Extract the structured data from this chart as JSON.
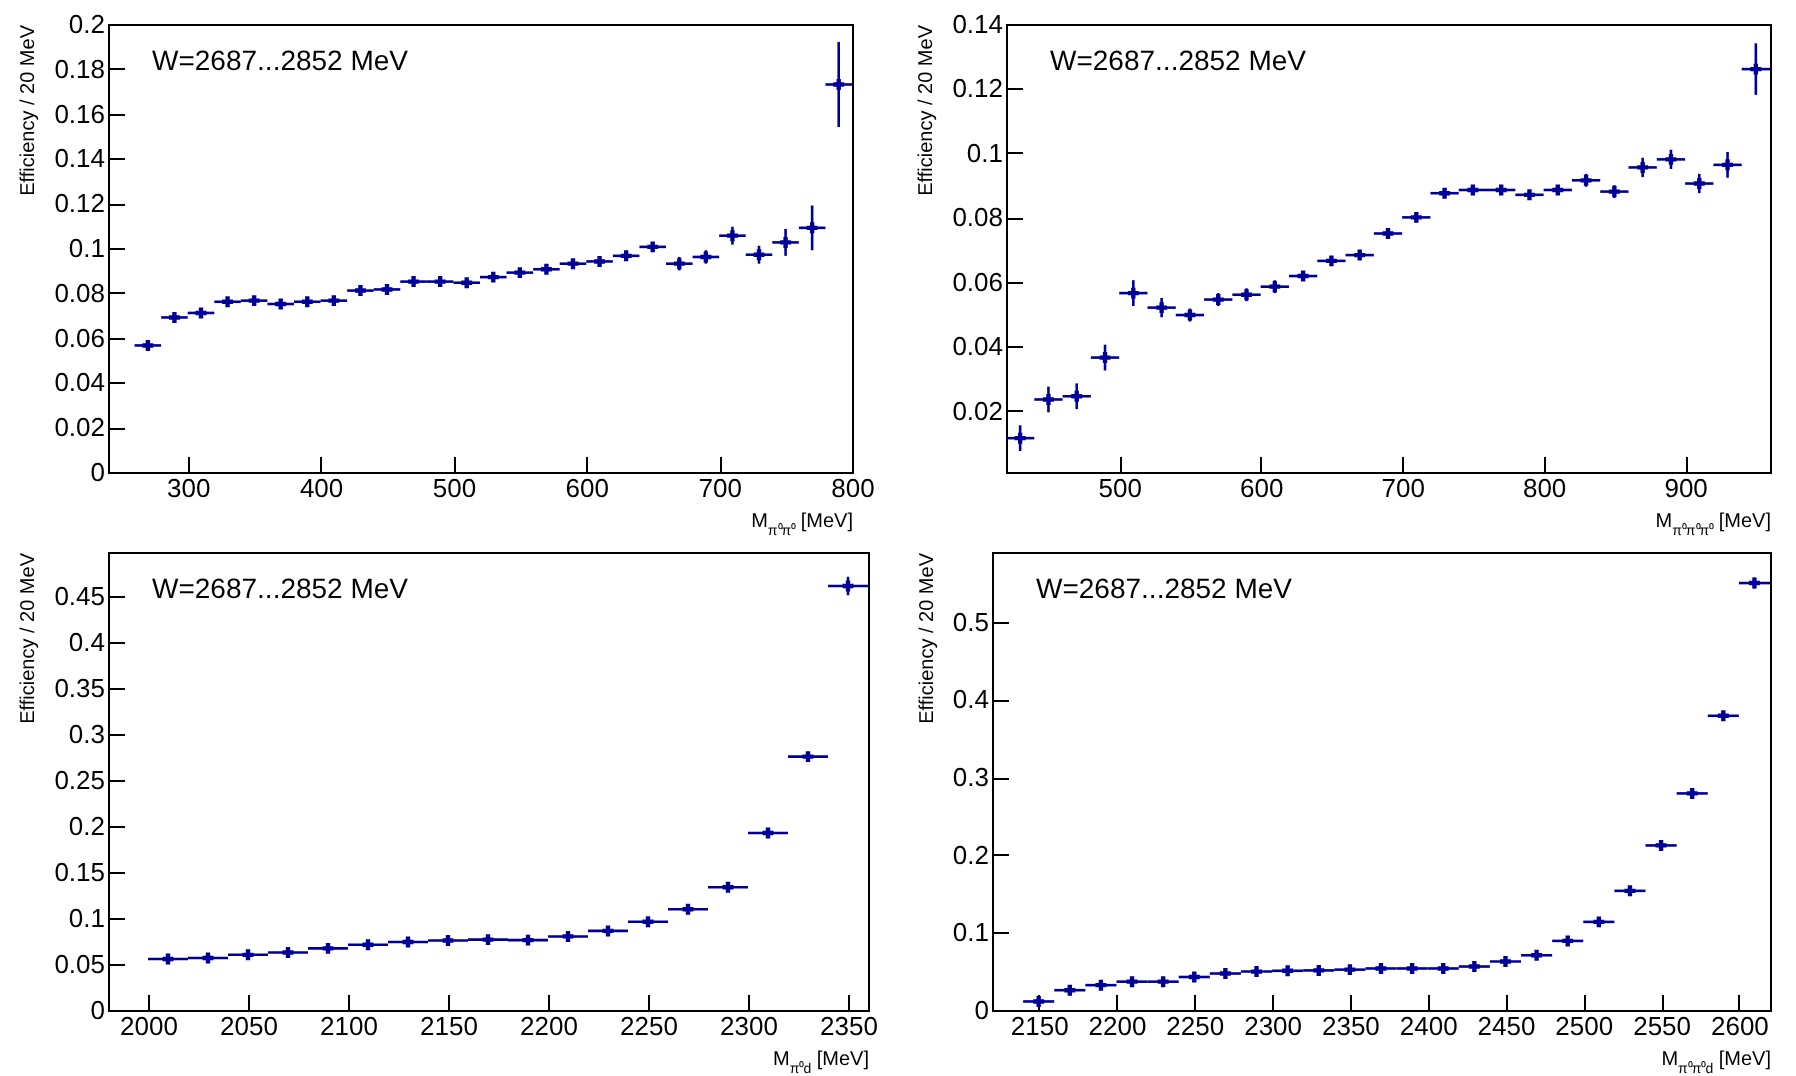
{
  "chart_data": [
    {
      "type": "scatter",
      "xlabel": "M$_{π⁰π⁰}$ [MeV]",
      "ylabel": "Efficiency / 20 MeV",
      "annotations": [
        "W=2687...2852 MeV"
      ],
      "color": "#000099",
      "marker": "cross",
      "grid": false,
      "xlim": [
        240,
        800
      ],
      "xticks": [
        300,
        400,
        500,
        600,
        700,
        800
      ],
      "ylim": [
        0,
        0.2
      ],
      "yticks": [
        0,
        0.02,
        0.04,
        0.06,
        0.08,
        0.1,
        0.12,
        0.14,
        0.16,
        0.18,
        0.2
      ],
      "x": [
        270,
        290,
        310,
        330,
        350,
        370,
        390,
        410,
        430,
        450,
        470,
        490,
        510,
        530,
        550,
        570,
        590,
        610,
        630,
        650,
        670,
        690,
        710,
        730,
        750,
        770,
        790
      ],
      "values": [
        0.0565,
        0.069,
        0.071,
        0.076,
        0.0765,
        0.075,
        0.076,
        0.0765,
        0.081,
        0.0815,
        0.085,
        0.085,
        0.0845,
        0.087,
        0.089,
        0.0905,
        0.093,
        0.094,
        0.0965,
        0.1005,
        0.093,
        0.096,
        0.1055,
        0.097,
        0.1025,
        0.109,
        0.173
      ],
      "errors": [
        0.001,
        0.001,
        0.001,
        0.001,
        0.001,
        0.001,
        0.001,
        0.001,
        0.001,
        0.001,
        0.001,
        0.001,
        0.001,
        0.001,
        0.0015,
        0.0015,
        0.0015,
        0.0015,
        0.002,
        0.002,
        0.003,
        0.003,
        0.004,
        0.004,
        0.006,
        0.01,
        0.019
      ],
      "xerrors": [
        10,
        10,
        10,
        10,
        10,
        10,
        10,
        10,
        10,
        10,
        10,
        10,
        10,
        10,
        10,
        10,
        10,
        10,
        10,
        10,
        10,
        10,
        10,
        10,
        10,
        10,
        10
      ]
    },
    {
      "type": "scatter",
      "xlabel": "M$_{π⁰π⁰π⁰}$ [MeV]",
      "ylabel": "Efficiency / 20 MeV",
      "annotations": [
        "W=2687...2852 MeV"
      ],
      "color": "#000099",
      "marker": "cross",
      "grid": false,
      "xlim": [
        420,
        960
      ],
      "xticks": [
        500,
        600,
        700,
        800,
        900
      ],
      "ylim": [
        0.001,
        0.14
      ],
      "yticks": [
        0.02,
        0.04,
        0.06,
        0.08,
        0.1,
        0.12,
        0.14
      ],
      "x": [
        430,
        450,
        470,
        490,
        510,
        530,
        550,
        570,
        590,
        610,
        630,
        650,
        670,
        690,
        710,
        730,
        750,
        770,
        790,
        810,
        830,
        850,
        870,
        890,
        910,
        930,
        950
      ],
      "values": [
        0.0115,
        0.0235,
        0.0245,
        0.0365,
        0.0565,
        0.052,
        0.0497,
        0.0545,
        0.056,
        0.0585,
        0.0618,
        0.0665,
        0.0683,
        0.075,
        0.08,
        0.0875,
        0.0885,
        0.0885,
        0.087,
        0.0885,
        0.0915,
        0.088,
        0.0955,
        0.098,
        0.0905,
        0.0963,
        0.126
      ],
      "errors": [
        0.004,
        0.004,
        0.004,
        0.004,
        0.004,
        0.003,
        0.002,
        0.002,
        0.002,
        0.002,
        0.0015,
        0.0015,
        0.0015,
        0.0015,
        0.0015,
        0.0015,
        0.0015,
        0.0015,
        0.0015,
        0.0015,
        0.002,
        0.002,
        0.003,
        0.003,
        0.003,
        0.004,
        0.008
      ],
      "xerrors": [
        10,
        10,
        10,
        10,
        10,
        10,
        10,
        10,
        10,
        10,
        10,
        10,
        10,
        10,
        10,
        10,
        10,
        10,
        10,
        10,
        10,
        10,
        10,
        10,
        10,
        10,
        10
      ]
    },
    {
      "type": "scatter",
      "xlabel": "M$_{π⁰d}$ [MeV]",
      "ylabel": "Efficiency / 20 MeV",
      "annotations": [
        "W=2687...2852 MeV"
      ],
      "color": "#000099",
      "marker": "cross",
      "grid": false,
      "xlim": [
        1980,
        2360
      ],
      "xticks": [
        2000,
        2050,
        2100,
        2150,
        2200,
        2250,
        2300,
        2350
      ],
      "ylim": [
        0,
        0.498
      ],
      "yticks": [
        0,
        0.05,
        0.1,
        0.15,
        0.2,
        0.25,
        0.3,
        0.35,
        0.4,
        0.45
      ],
      "x": [
        2010,
        2030,
        2050,
        2070,
        2090,
        2110,
        2130,
        2150,
        2170,
        2190,
        2210,
        2230,
        2250,
        2270,
        2290,
        2310,
        2330,
        2350
      ],
      "values": [
        0.0555,
        0.0565,
        0.06,
        0.0625,
        0.067,
        0.071,
        0.074,
        0.0755,
        0.0765,
        0.076,
        0.08,
        0.086,
        0.096,
        0.1095,
        0.1335,
        0.1925,
        0.2755,
        0.461
      ],
      "errors": [
        0.001,
        0.001,
        0.001,
        0.001,
        0.001,
        0.001,
        0.001,
        0.001,
        0.001,
        0.001,
        0.001,
        0.001,
        0.001,
        0.0015,
        0.002,
        0.003,
        0.004,
        0.01
      ],
      "xerrors": [
        10,
        10,
        10,
        10,
        10,
        10,
        10,
        10,
        10,
        10,
        10,
        10,
        10,
        10,
        10,
        10,
        10,
        10
      ]
    },
    {
      "type": "scatter",
      "xlabel": "M$_{π⁰π⁰d}$ [MeV]",
      "ylabel": "Efficiency / 20 MeV",
      "annotations": [
        "W=2687...2852 MeV"
      ],
      "color": "#000099",
      "marker": "cross",
      "grid": false,
      "xlim": [
        2120,
        2620
      ],
      "xticks": [
        2150,
        2200,
        2250,
        2300,
        2350,
        2400,
        2450,
        2500,
        2550,
        2600
      ],
      "ylim": [
        0,
        0.59
      ],
      "yticks": [
        0,
        0.1,
        0.2,
        0.3,
        0.4,
        0.5
      ],
      "x": [
        2150,
        2170,
        2190,
        2210,
        2230,
        2250,
        2270,
        2290,
        2310,
        2330,
        2350,
        2370,
        2390,
        2410,
        2430,
        2450,
        2470,
        2490,
        2510,
        2530,
        2550,
        2570,
        2590,
        2610
      ],
      "values": [
        0.011,
        0.0255,
        0.032,
        0.0365,
        0.0365,
        0.0425,
        0.047,
        0.0495,
        0.0505,
        0.051,
        0.052,
        0.0535,
        0.0535,
        0.0535,
        0.056,
        0.0625,
        0.0705,
        0.089,
        0.1135,
        0.1535,
        0.212,
        0.279,
        0.379,
        0.55
      ],
      "errors": [
        0.004,
        0.001,
        0.001,
        0.001,
        0.001,
        0.001,
        0.001,
        0.001,
        0.001,
        0.001,
        0.001,
        0.001,
        0.001,
        0.001,
        0.001,
        0.001,
        0.001,
        0.001,
        0.001,
        0.001,
        0.002,
        0.004,
        0.005,
        0.007
      ],
      "xerrors": [
        10,
        10,
        10,
        10,
        10,
        10,
        10,
        10,
        10,
        10,
        10,
        10,
        10,
        10,
        10,
        10,
        10,
        10,
        10,
        10,
        10,
        10,
        10,
        10
      ]
    }
  ]
}
